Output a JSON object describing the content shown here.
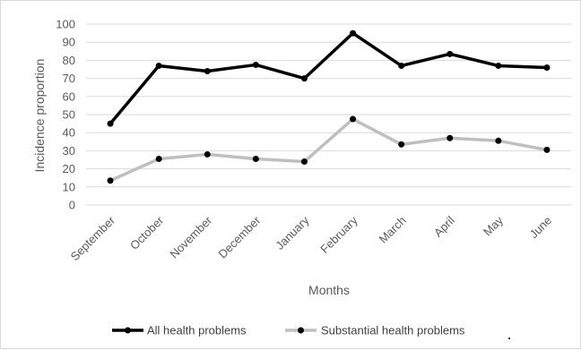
{
  "chart_data": {
    "type": "line",
    "title": "",
    "xlabel": "Months",
    "ylabel": "Incidence proportion",
    "ylim": [
      0,
      100
    ],
    "yticks": [
      "0",
      "10",
      "20",
      "30",
      "40",
      "50",
      "60",
      "70",
      "80",
      "90",
      "100"
    ],
    "categories": [
      "September",
      "October",
      "November",
      "December",
      "January",
      "February",
      "March",
      "April",
      "May",
      "June"
    ],
    "grid": true,
    "legend_position": "bottom",
    "series": [
      {
        "name": "All health problems",
        "color": "#000000",
        "values": [
          45,
          77,
          74,
          77.5,
          70,
          95,
          77,
          83.5,
          77,
          76
        ]
      },
      {
        "name": "Substantial health problems",
        "color": "#bfbfbf",
        "values": [
          13.5,
          25.5,
          28,
          25.5,
          24,
          47.5,
          33.5,
          37,
          35.5,
          30.5
        ]
      }
    ]
  }
}
